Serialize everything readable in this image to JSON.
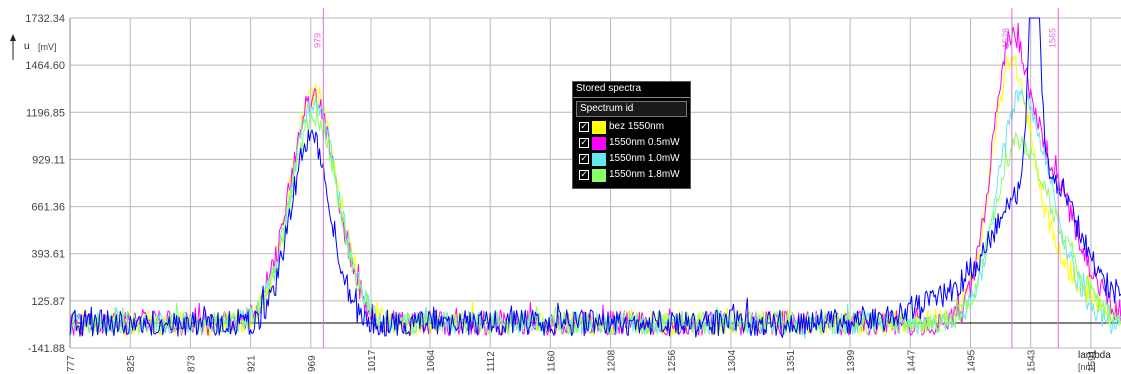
{
  "chart_data": {
    "type": "line",
    "xlabel": "lambda",
    "xunit": "[nm]",
    "ylabel": "u",
    "yunit": "[mV]",
    "xlim": [
      777,
      1615
    ],
    "ylim": [
      -141.88,
      1732.34
    ],
    "y_ticks": [
      "1732.34",
      "1464.60",
      "1196.85",
      "929.11",
      "661.36",
      "393.61",
      "125.87",
      "-141.88"
    ],
    "x_ticks": [
      "777",
      "825",
      "873",
      "921",
      "969",
      "1017",
      "1064",
      "1112",
      "1160",
      "1208",
      "1256",
      "1304",
      "1351",
      "1399",
      "1447",
      "1495",
      "1543",
      "1591"
    ],
    "grid": true,
    "reference_line_y": 0,
    "markers": [
      {
        "label": "979",
        "x": 979
      },
      {
        "label": "1528",
        "x": 1528
      },
      {
        "label": "1565",
        "x": 1565
      }
    ],
    "legend": {
      "title": "Stored spectra",
      "header": "Spectrum id",
      "placement": "center-top"
    },
    "series": [
      {
        "name": "bez 1550nm",
        "color": "#ffff00",
        "peaks": [
          {
            "x": 972,
            "y": 1300,
            "w": 19
          },
          {
            "x": 1526,
            "y": 1110,
            "w": 15
          },
          {
            "x": 1547,
            "y": 480,
            "w": 28
          }
        ],
        "noise": 70
      },
      {
        "name": "1550nm 0.5mW",
        "color": "#ff00ff",
        "peaks": [
          {
            "x": 971,
            "y": 1270,
            "w": 19
          },
          {
            "x": 1525,
            "y": 1060,
            "w": 14
          },
          {
            "x": 1552,
            "y": 890,
            "w": 27
          }
        ],
        "noise": 70
      },
      {
        "name": "1550nm 1.0mW",
        "color": "#66e8f0",
        "peaks": [
          {
            "x": 972,
            "y": 1240,
            "w": 19
          },
          {
            "x": 1531,
            "y": 800,
            "w": 17
          },
          {
            "x": 1549,
            "y": 640,
            "w": 22
          }
        ],
        "noise": 65
      },
      {
        "name": "1550nm 1.8mW",
        "color": "#88ff66",
        "peaks": [
          {
            "x": 972,
            "y": 1180,
            "w": 19
          },
          {
            "x": 1529,
            "y": 620,
            "w": 17
          },
          {
            "x": 1552,
            "y": 560,
            "w": 26
          }
        ],
        "noise": 65
      },
      {
        "name": "",
        "color": "#0000ff",
        "peaks": [
          {
            "x": 969,
            "y": 1060,
            "w": 16
          },
          {
            "x": 1546,
            "y": 1480,
            "w": 4
          },
          {
            "x": 1553,
            "y": 680,
            "w": 30
          },
          {
            "x": 1520,
            "y": 220,
            "w": 50
          }
        ],
        "noise": 75
      }
    ],
    "colors": {
      "grid": "#b8b8b8",
      "marker": "#e070d8",
      "baseline": "#000000"
    }
  }
}
